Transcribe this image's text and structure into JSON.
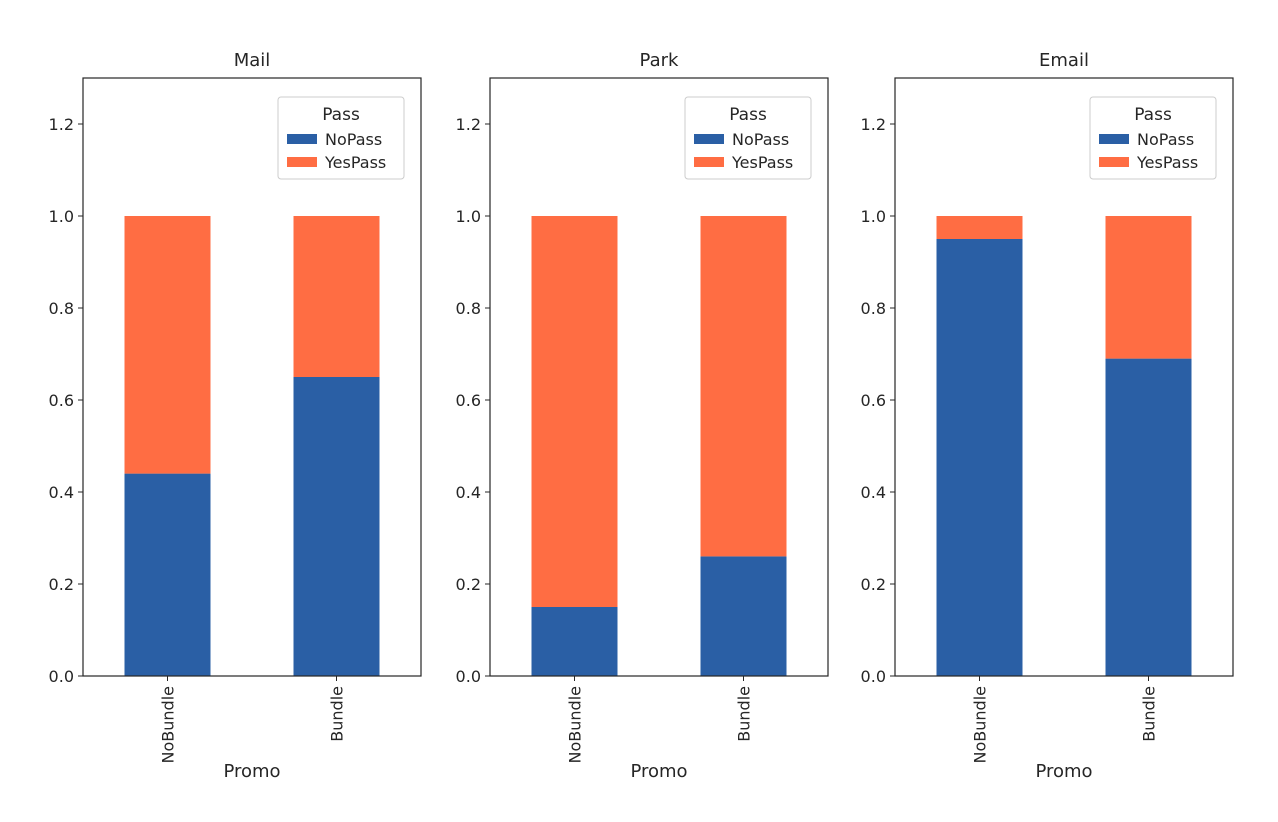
{
  "chart_data": [
    {
      "type": "bar",
      "stacked": true,
      "title": "Mail",
      "xlabel": "Promo",
      "ylabel": "",
      "categories": [
        "NoBundle",
        "Bundle"
      ],
      "series": [
        {
          "name": "NoPass",
          "values": [
            0.44,
            0.65
          ],
          "color": "#2a5fa5"
        },
        {
          "name": "YesPass",
          "values": [
            0.56,
            0.35
          ],
          "color": "#ff6d43"
        }
      ],
      "ylim": [
        0,
        1.3
      ],
      "yticks": [
        "0.0",
        "0.2",
        "0.4",
        "0.6",
        "0.8",
        "1.0",
        "1.2"
      ],
      "legend": {
        "title": "Pass",
        "position": "upper right"
      },
      "grid": false
    },
    {
      "type": "bar",
      "stacked": true,
      "title": "Park",
      "xlabel": "Promo",
      "ylabel": "",
      "categories": [
        "NoBundle",
        "Bundle"
      ],
      "series": [
        {
          "name": "NoPass",
          "values": [
            0.15,
            0.26
          ],
          "color": "#2a5fa5"
        },
        {
          "name": "YesPass",
          "values": [
            0.85,
            0.74
          ],
          "color": "#ff6d43"
        }
      ],
      "ylim": [
        0,
        1.3
      ],
      "yticks": [
        "0.0",
        "0.2",
        "0.4",
        "0.6",
        "0.8",
        "1.0",
        "1.2"
      ],
      "legend": {
        "title": "Pass",
        "position": "upper right"
      },
      "grid": false
    },
    {
      "type": "bar",
      "stacked": true,
      "title": "Email",
      "xlabel": "Promo",
      "ylabel": "",
      "categories": [
        "NoBundle",
        "Bundle"
      ],
      "series": [
        {
          "name": "NoPass",
          "values": [
            0.95,
            0.69
          ],
          "color": "#2a5fa5"
        },
        {
          "name": "YesPass",
          "values": [
            0.05,
            0.31
          ],
          "color": "#ff6d43"
        }
      ],
      "ylim": [
        0,
        1.3
      ],
      "yticks": [
        "0.0",
        "0.2",
        "0.4",
        "0.6",
        "0.8",
        "1.0",
        "1.2"
      ],
      "legend": {
        "title": "Pass",
        "position": "upper right"
      },
      "grid": false
    }
  ]
}
